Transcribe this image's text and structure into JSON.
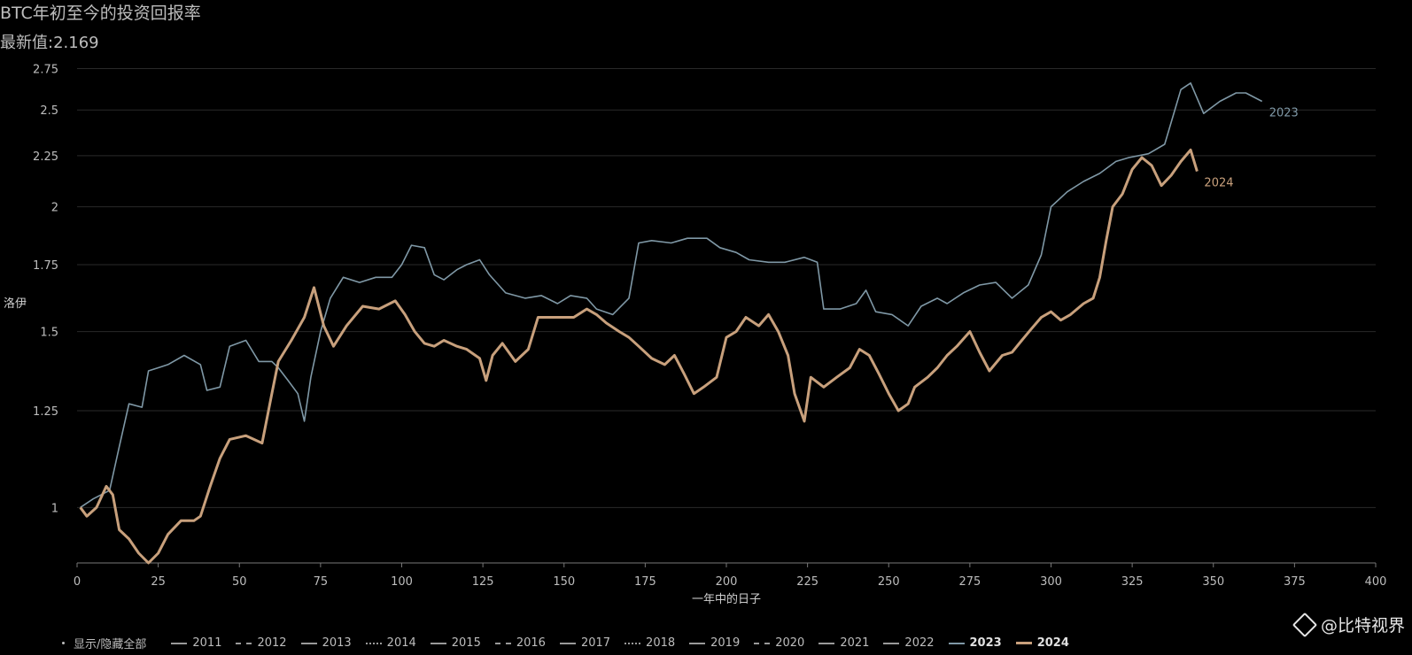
{
  "header": {
    "title": "BTC年初至今的投资回报率",
    "latest": "最新值:2.169"
  },
  "legend": {
    "toggle_all": "显示/隐藏全部",
    "items": [
      {
        "label": "2011",
        "style": "solid"
      },
      {
        "label": "2012",
        "style": "dash"
      },
      {
        "label": "2013",
        "style": "solid"
      },
      {
        "label": "2014",
        "style": "dot"
      },
      {
        "label": "2015",
        "style": "solid"
      },
      {
        "label": "2016",
        "style": "dash"
      },
      {
        "label": "2017",
        "style": "solid"
      },
      {
        "label": "2018",
        "style": "dot"
      },
      {
        "label": "2019",
        "style": "solid"
      },
      {
        "label": "2020",
        "style": "dash"
      },
      {
        "label": "2021",
        "style": "solid"
      },
      {
        "label": "2022",
        "style": "solid"
      },
      {
        "label": "2023",
        "style": "solid",
        "color": "#7f98a6"
      },
      {
        "label": "2024",
        "style": "solid",
        "color": "#c8a07c"
      }
    ]
  },
  "watermark": "@比特视界",
  "chart_data": {
    "type": "line",
    "title": "BTC年初至今的投资回报率",
    "subtitle": "最新值:2.169",
    "xlabel": "一年中的日子",
    "ylabel": "洛伊",
    "xlim": [
      0,
      400
    ],
    "ylim": [
      0.88,
      2.85
    ],
    "y_scale": "log",
    "x_ticks": [
      0,
      25,
      50,
      75,
      100,
      125,
      150,
      175,
      200,
      225,
      250,
      275,
      300,
      325,
      350,
      375,
      400
    ],
    "y_ticks": [
      1,
      1.25,
      1.5,
      1.75,
      2,
      2.25,
      2.5,
      2.75
    ],
    "y_tick_labels": [
      "1",
      "1.25",
      "1.5",
      "1.75",
      "2",
      "2.25",
      "2.5",
      "2.75"
    ],
    "grid": true,
    "series": [
      {
        "name": "2023",
        "color": "#7f98a6",
        "end_label": "2023",
        "points": [
          [
            1,
            1.0
          ],
          [
            5,
            1.02
          ],
          [
            10,
            1.04
          ],
          [
            13,
            1.15
          ],
          [
            16,
            1.27
          ],
          [
            20,
            1.26
          ],
          [
            22,
            1.37
          ],
          [
            25,
            1.38
          ],
          [
            28,
            1.39
          ],
          [
            33,
            1.42
          ],
          [
            38,
            1.39
          ],
          [
            40,
            1.31
          ],
          [
            44,
            1.32
          ],
          [
            47,
            1.45
          ],
          [
            52,
            1.47
          ],
          [
            56,
            1.4
          ],
          [
            60,
            1.4
          ],
          [
            62,
            1.38
          ],
          [
            65,
            1.34
          ],
          [
            68,
            1.3
          ],
          [
            70,
            1.22
          ],
          [
            72,
            1.35
          ],
          [
            75,
            1.5
          ],
          [
            78,
            1.62
          ],
          [
            82,
            1.7
          ],
          [
            87,
            1.68
          ],
          [
            92,
            1.7
          ],
          [
            97,
            1.7
          ],
          [
            100,
            1.75
          ],
          [
            103,
            1.83
          ],
          [
            107,
            1.82
          ],
          [
            110,
            1.71
          ],
          [
            113,
            1.69
          ],
          [
            117,
            1.73
          ],
          [
            120,
            1.75
          ],
          [
            124,
            1.77
          ],
          [
            127,
            1.71
          ],
          [
            132,
            1.64
          ],
          [
            138,
            1.62
          ],
          [
            143,
            1.63
          ],
          [
            148,
            1.6
          ],
          [
            152,
            1.63
          ],
          [
            157,
            1.62
          ],
          [
            160,
            1.58
          ],
          [
            165,
            1.56
          ],
          [
            170,
            1.62
          ],
          [
            173,
            1.84
          ],
          [
            177,
            1.85
          ],
          [
            183,
            1.84
          ],
          [
            188,
            1.86
          ],
          [
            194,
            1.86
          ],
          [
            198,
            1.82
          ],
          [
            203,
            1.8
          ],
          [
            207,
            1.77
          ],
          [
            213,
            1.76
          ],
          [
            218,
            1.76
          ],
          [
            224,
            1.78
          ],
          [
            228,
            1.76
          ],
          [
            230,
            1.58
          ],
          [
            235,
            1.58
          ],
          [
            240,
            1.6
          ],
          [
            243,
            1.65
          ],
          [
            246,
            1.57
          ],
          [
            251,
            1.56
          ],
          [
            256,
            1.52
          ],
          [
            260,
            1.59
          ],
          [
            265,
            1.62
          ],
          [
            268,
            1.6
          ],
          [
            273,
            1.64
          ],
          [
            278,
            1.67
          ],
          [
            283,
            1.68
          ],
          [
            288,
            1.62
          ],
          [
            293,
            1.67
          ],
          [
            297,
            1.79
          ],
          [
            300,
            2.0
          ],
          [
            305,
            2.07
          ],
          [
            310,
            2.12
          ],
          [
            315,
            2.16
          ],
          [
            320,
            2.22
          ],
          [
            324,
            2.24
          ],
          [
            330,
            2.26
          ],
          [
            335,
            2.31
          ],
          [
            340,
            2.62
          ],
          [
            343,
            2.66
          ],
          [
            347,
            2.48
          ],
          [
            352,
            2.55
          ],
          [
            357,
            2.6
          ],
          [
            360,
            2.6
          ],
          [
            365,
            2.55
          ]
        ]
      },
      {
        "name": "2024",
        "color": "#c8a07c",
        "end_label": "2024",
        "points": [
          [
            1,
            1.0
          ],
          [
            3,
            0.98
          ],
          [
            6,
            1.0
          ],
          [
            9,
            1.05
          ],
          [
            11,
            1.03
          ],
          [
            13,
            0.95
          ],
          [
            16,
            0.93
          ],
          [
            19,
            0.9
          ],
          [
            22,
            0.88
          ],
          [
            25,
            0.9
          ],
          [
            28,
            0.94
          ],
          [
            32,
            0.97
          ],
          [
            36,
            0.97
          ],
          [
            38,
            0.98
          ],
          [
            41,
            1.05
          ],
          [
            44,
            1.12
          ],
          [
            47,
            1.17
          ],
          [
            52,
            1.18
          ],
          [
            57,
            1.16
          ],
          [
            60,
            1.3
          ],
          [
            62,
            1.4
          ],
          [
            66,
            1.47
          ],
          [
            70,
            1.55
          ],
          [
            73,
            1.66
          ],
          [
            76,
            1.52
          ],
          [
            79,
            1.45
          ],
          [
            83,
            1.52
          ],
          [
            88,
            1.59
          ],
          [
            93,
            1.58
          ],
          [
            98,
            1.61
          ],
          [
            101,
            1.56
          ],
          [
            104,
            1.5
          ],
          [
            107,
            1.46
          ],
          [
            110,
            1.45
          ],
          [
            113,
            1.47
          ],
          [
            117,
            1.45
          ],
          [
            120,
            1.44
          ],
          [
            124,
            1.41
          ],
          [
            126,
            1.34
          ],
          [
            128,
            1.42
          ],
          [
            131,
            1.46
          ],
          [
            135,
            1.4
          ],
          [
            139,
            1.44
          ],
          [
            142,
            1.55
          ],
          [
            145,
            1.55
          ],
          [
            149,
            1.55
          ],
          [
            153,
            1.55
          ],
          [
            157,
            1.58
          ],
          [
            160,
            1.56
          ],
          [
            163,
            1.53
          ],
          [
            167,
            1.5
          ],
          [
            170,
            1.48
          ],
          [
            173,
            1.45
          ],
          [
            177,
            1.41
          ],
          [
            181,
            1.39
          ],
          [
            184,
            1.42
          ],
          [
            187,
            1.36
          ],
          [
            190,
            1.3
          ],
          [
            193,
            1.32
          ],
          [
            197,
            1.35
          ],
          [
            200,
            1.48
          ],
          [
            203,
            1.5
          ],
          [
            206,
            1.55
          ],
          [
            210,
            1.52
          ],
          [
            213,
            1.56
          ],
          [
            216,
            1.5
          ],
          [
            219,
            1.42
          ],
          [
            221,
            1.3
          ],
          [
            224,
            1.22
          ],
          [
            226,
            1.35
          ],
          [
            230,
            1.32
          ],
          [
            234,
            1.35
          ],
          [
            238,
            1.38
          ],
          [
            241,
            1.44
          ],
          [
            244,
            1.42
          ],
          [
            247,
            1.36
          ],
          [
            250,
            1.3
          ],
          [
            253,
            1.25
          ],
          [
            256,
            1.27
          ],
          [
            258,
            1.32
          ],
          [
            262,
            1.35
          ],
          [
            265,
            1.38
          ],
          [
            268,
            1.42
          ],
          [
            271,
            1.45
          ],
          [
            275,
            1.5
          ],
          [
            278,
            1.43
          ],
          [
            281,
            1.37
          ],
          [
            285,
            1.42
          ],
          [
            288,
            1.43
          ],
          [
            291,
            1.47
          ],
          [
            294,
            1.51
          ],
          [
            297,
            1.55
          ],
          [
            300,
            1.57
          ],
          [
            303,
            1.54
          ],
          [
            306,
            1.56
          ],
          [
            310,
            1.6
          ],
          [
            313,
            1.62
          ],
          [
            315,
            1.7
          ],
          [
            317,
            1.85
          ],
          [
            319,
            2.0
          ],
          [
            322,
            2.06
          ],
          [
            325,
            2.18
          ],
          [
            328,
            2.24
          ],
          [
            331,
            2.2
          ],
          [
            334,
            2.1
          ],
          [
            337,
            2.15
          ],
          [
            340,
            2.22
          ],
          [
            343,
            2.28
          ],
          [
            345,
            2.17
          ]
        ]
      }
    ]
  }
}
